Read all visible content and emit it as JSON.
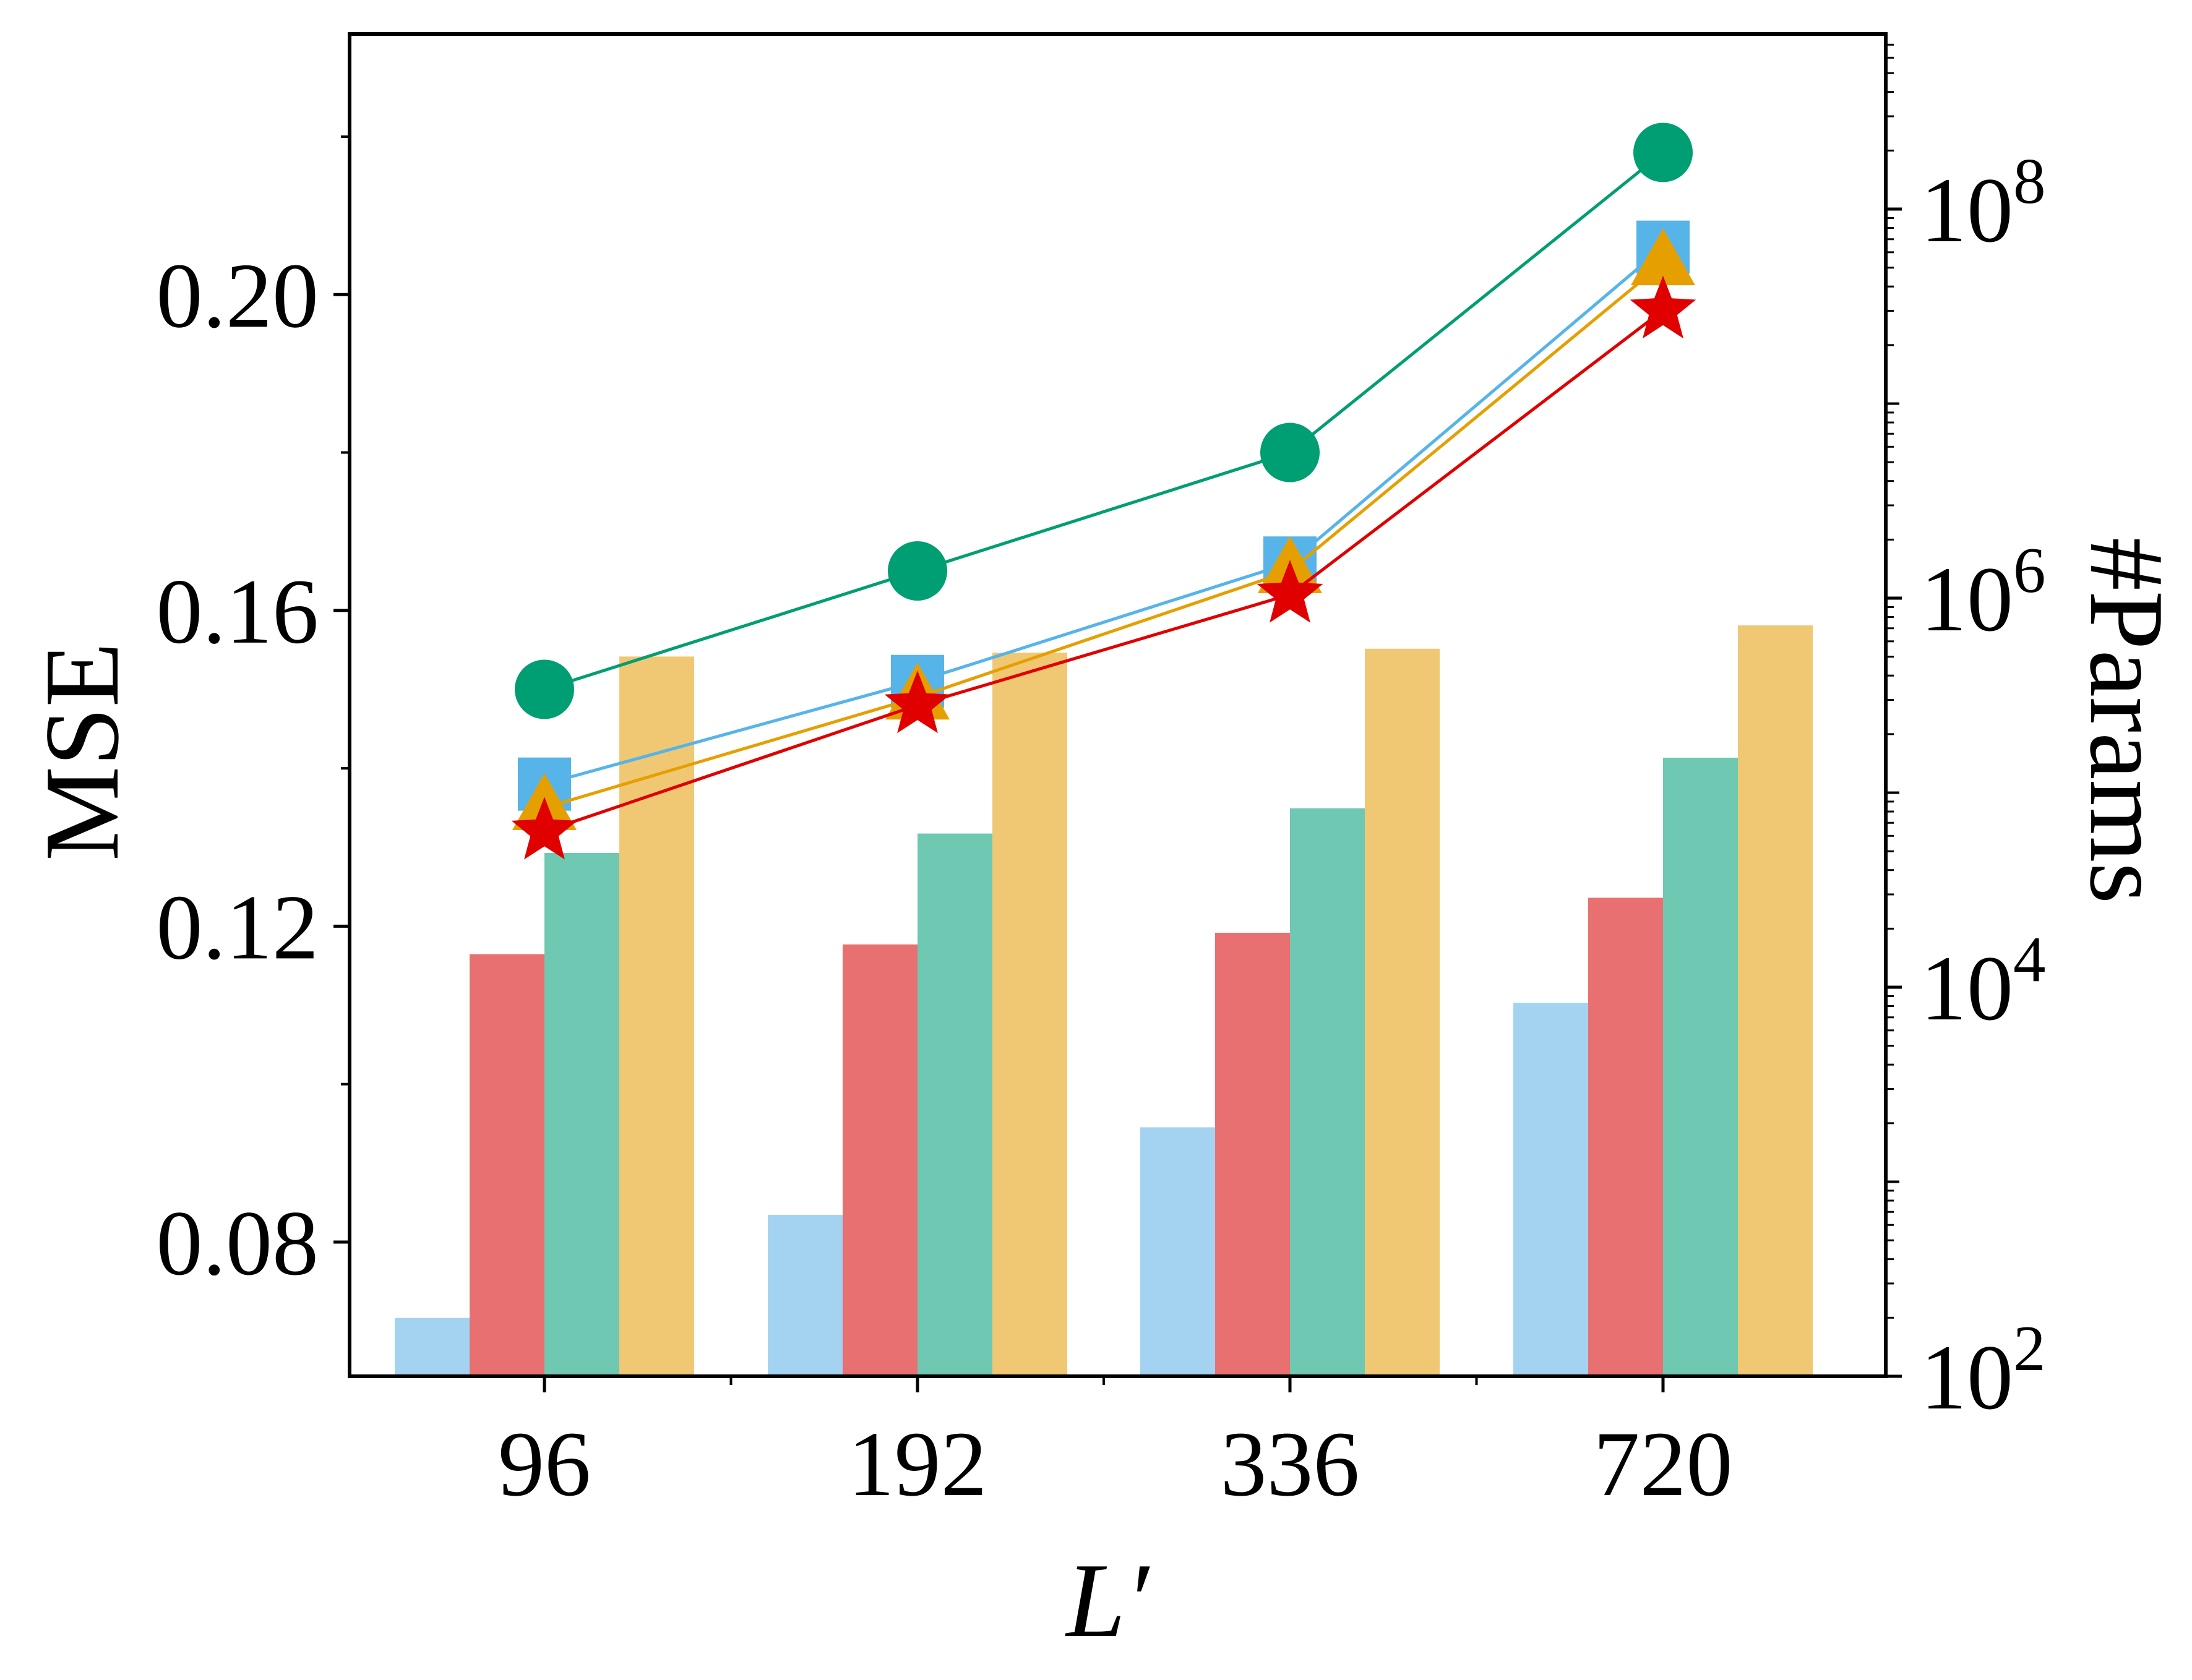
{
  "chart_data": {
    "type": "bar+line",
    "categories": [
      "96",
      "192",
      "336",
      "720"
    ],
    "xlabel": "L′",
    "ylabel": "MSE",
    "y2label": "#Params",
    "ylim": [
      0.063,
      0.233
    ],
    "y2lim_log10": [
      2,
      8.9
    ],
    "yticks": [
      "0.08",
      "0.12",
      "0.16",
      "0.20"
    ],
    "ytick_values": [
      0.08,
      0.12,
      0.16,
      0.2
    ],
    "y2ticks": [
      {
        "base": "10",
        "exp": "2",
        "log10": 2
      },
      {
        "base": "10",
        "exp": "4",
        "log10": 4
      },
      {
        "base": "10",
        "exp": "6",
        "log10": 6
      },
      {
        "base": "10",
        "exp": "8",
        "log10": 8
      }
    ],
    "line_series": [
      {
        "name": "green-circle",
        "marker": "circle",
        "color": "#009E73",
        "values": [
          0.15,
          0.165,
          0.18,
          0.218
        ]
      },
      {
        "name": "blue-square",
        "marker": "square",
        "color": "#56B4E9",
        "values": [
          0.138,
          0.151,
          0.166,
          0.206
        ]
      },
      {
        "name": "orange-triangle",
        "marker": "triangle",
        "color": "#E69F00",
        "values": [
          0.135,
          0.149,
          0.165,
          0.204
        ]
      },
      {
        "name": "red-star",
        "marker": "star",
        "color": "#E00000",
        "values": [
          0.132,
          0.148,
          0.162,
          0.198
        ]
      }
    ],
    "bar_series": [
      {
        "name": "light-blue-bars",
        "color": "#A4D3F1",
        "log10_values": [
          2.3,
          2.83,
          3.28,
          3.92
        ]
      },
      {
        "name": "red-bars",
        "color": "#E87070",
        "log10_values": [
          4.17,
          4.22,
          4.28,
          4.46
        ]
      },
      {
        "name": "teal-bars",
        "color": "#6EC8B2",
        "log10_values": [
          4.69,
          4.79,
          4.92,
          5.18
        ]
      },
      {
        "name": "yellow-bars",
        "color": "#F0C873",
        "log10_values": [
          5.7,
          5.72,
          5.74,
          5.86
        ]
      }
    ]
  }
}
